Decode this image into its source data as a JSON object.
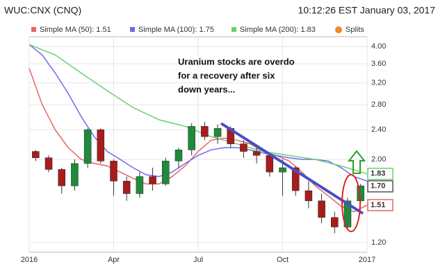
{
  "header": {
    "symbol": "WUC:CNX (CNQ)",
    "timestamp": "10:12:26 EST January 03, 2017"
  },
  "chart_data": {
    "type": "candlestick",
    "log_scale": true,
    "grid": true,
    "up_color": "#1f8a3c",
    "down_color": "#a81c1c",
    "x": [
      1,
      3,
      5,
      7,
      9,
      11,
      13,
      15,
      17,
      19,
      21,
      23,
      25,
      27,
      29,
      31,
      33,
      35,
      37,
      39,
      41,
      43,
      45,
      47,
      49,
      51
    ],
    "open": [
      2.1,
      2.02,
      1.88,
      1.7,
      1.95,
      2.4,
      1.98,
      1.75,
      1.62,
      1.8,
      1.72,
      1.98,
      2.12,
      2.45,
      2.3,
      2.42,
      2.2,
      2.1,
      2.05,
      1.85,
      1.9,
      1.65,
      1.55,
      1.4,
      1.32,
      1.55
    ],
    "high": [
      2.12,
      2.05,
      1.9,
      2.0,
      2.42,
      2.42,
      2.0,
      1.8,
      1.85,
      1.9,
      2.02,
      2.15,
      2.5,
      2.52,
      2.48,
      2.45,
      2.25,
      2.15,
      2.08,
      2.0,
      1.92,
      1.75,
      1.62,
      1.45,
      1.58,
      1.72
    ],
    "low": [
      1.98,
      1.85,
      1.62,
      1.65,
      1.9,
      1.95,
      1.6,
      1.55,
      1.58,
      1.65,
      1.7,
      1.9,
      2.05,
      2.25,
      2.2,
      2.15,
      2.02,
      1.95,
      1.8,
      1.6,
      1.6,
      1.48,
      1.35,
      1.27,
      1.3,
      1.52
    ],
    "close": [
      2.02,
      1.88,
      1.7,
      1.95,
      2.4,
      1.98,
      1.75,
      1.62,
      1.8,
      1.72,
      1.98,
      2.12,
      2.45,
      2.3,
      2.42,
      2.2,
      2.1,
      2.05,
      1.85,
      1.9,
      1.65,
      1.55,
      1.4,
      1.32,
      1.55,
      1.7
    ],
    "ma_series": [
      {
        "name": "Simple MA (50): 1.51",
        "color": "#e86464",
        "x": [
          0,
          2,
          4,
          6,
          8,
          10,
          12,
          14,
          16,
          18,
          20,
          22,
          24,
          26,
          28,
          30,
          32,
          34,
          36,
          38,
          40,
          42,
          44,
          46,
          48,
          50,
          52
        ],
        "values": [
          3.5,
          2.8,
          2.4,
          2.15,
          2.0,
          1.95,
          1.92,
          1.85,
          1.78,
          1.72,
          1.72,
          1.8,
          1.92,
          2.1,
          2.25,
          2.28,
          2.25,
          2.2,
          2.1,
          2.05,
          1.98,
          1.85,
          1.7,
          1.6,
          1.5,
          1.45,
          1.51
        ]
      },
      {
        "name": "Simple MA (100): 1.75",
        "color": "#6b6bf0",
        "x": [
          0,
          2,
          4,
          6,
          8,
          10,
          12,
          14,
          16,
          18,
          20,
          22,
          24,
          26,
          28,
          30,
          32,
          34,
          36,
          38,
          40,
          42,
          44,
          46,
          48,
          50,
          52
        ],
        "values": [
          4.05,
          3.8,
          3.4,
          3.0,
          2.6,
          2.3,
          2.1,
          2.0,
          1.9,
          1.82,
          1.8,
          1.85,
          1.95,
          2.05,
          2.12,
          2.15,
          2.15,
          2.12,
          2.08,
          2.05,
          2.02,
          2.0,
          2.0,
          1.98,
          1.9,
          1.8,
          1.75
        ]
      },
      {
        "name": "Simple MA (200): 1.83",
        "color": "#6ccf6c",
        "x": [
          0,
          4,
          8,
          12,
          16,
          20,
          24,
          28,
          32,
          36,
          40,
          44,
          48,
          52
        ],
        "values": [
          4.05,
          3.8,
          3.4,
          3.05,
          2.75,
          2.55,
          2.45,
          2.3,
          2.2,
          2.1,
          2.05,
          2.0,
          1.92,
          1.83
        ]
      }
    ],
    "splits_label": "Splits",
    "price_badges": [
      {
        "value": 1.83,
        "label": "1.83",
        "color": "#6ccf6c"
      },
      {
        "value": 1.7,
        "label": "1.70",
        "color": "#555555"
      },
      {
        "value": 1.51,
        "label": "1.51",
        "color": "#e86464"
      }
    ],
    "xlim": [
      0,
      52
    ],
    "xticks": [
      {
        "value": 0,
        "label": "2016"
      },
      {
        "value": 13,
        "label": "Apr"
      },
      {
        "value": 26,
        "label": "Jul"
      },
      {
        "value": 39,
        "label": "Oct"
      },
      {
        "value": 52,
        "label": "2017"
      }
    ],
    "ylim": [
      1.13,
      4.25
    ],
    "yticks": [
      {
        "value": 1.2,
        "label": "1.20"
      },
      {
        "value": 2.0,
        "label": "2.00"
      },
      {
        "value": 2.4,
        "label": "2.40"
      },
      {
        "value": 2.8,
        "label": "2.80"
      },
      {
        "value": 3.2,
        "label": "3.20"
      },
      {
        "value": 3.6,
        "label": "3.60"
      },
      {
        "value": 4.0,
        "label": "4.00"
      }
    ],
    "annotation": [
      "Uranium stocks are overdo",
      "for a recovery after six",
      "down years..."
    ]
  }
}
